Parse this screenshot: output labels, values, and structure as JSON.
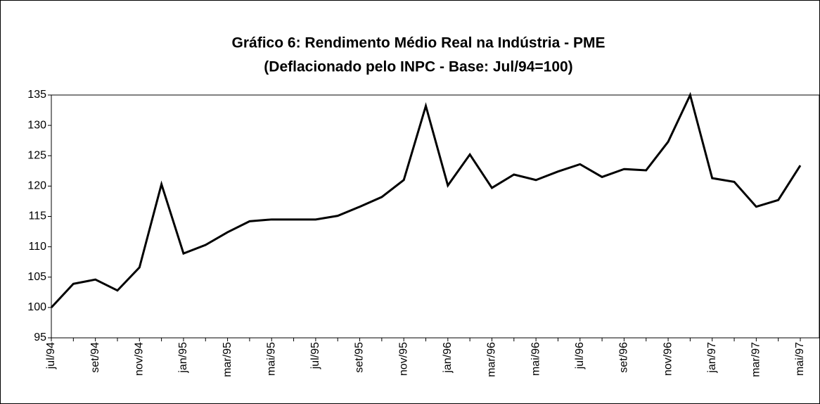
{
  "chart_data": {
    "type": "line",
    "title": "Gráfico 6: Rendimento Médio Real na Indústria - PME",
    "subtitle": "(Deflacionado pelo INPC - Base: Jul/94=100)",
    "categories": [
      "jul/94",
      null,
      "set/94",
      null,
      "nov/94",
      null,
      "jan/95",
      null,
      "mar/95",
      null,
      "mai/95",
      null,
      "jul/95",
      null,
      "set/95",
      null,
      "nov/95",
      null,
      "jan/96",
      null,
      "mar/96",
      null,
      "mai/96",
      null,
      "jul/96",
      null,
      "set/96",
      null,
      "nov/96",
      null,
      "jan/97",
      null,
      "mar/97",
      null,
      "mai/97"
    ],
    "series": [
      {
        "color": "#000000",
        "values": [
          100,
          103.9,
          104.6,
          102.8,
          106.6,
          120.3,
          108.9,
          110.3,
          112.4,
          114.2,
          114.5,
          114.5,
          114.5,
          115.1,
          116.6,
          118.2,
          121,
          133.2,
          120.1,
          125.2,
          119.7,
          121.9,
          121,
          122.4,
          123.6,
          121.5,
          122.8,
          122.6,
          127.3,
          135,
          121.3,
          120.7,
          116.6,
          117.7,
          123.4
        ]
      }
    ],
    "ylim": [
      95,
      135
    ],
    "yticks": [
      95,
      100,
      105,
      110,
      115,
      120,
      125,
      130,
      135
    ],
    "grid": false
  }
}
